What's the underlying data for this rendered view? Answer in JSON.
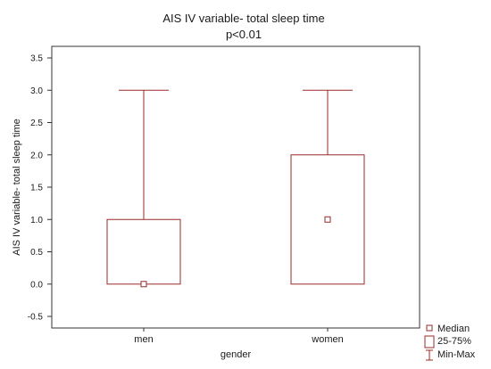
{
  "chart_data": {
    "type": "box",
    "title": "AIS IV variable- total sleep time",
    "subtitle": "p<0.01",
    "xlabel": "gender",
    "ylabel": "AIS IV variable- total sleep time",
    "categories": [
      "men",
      "women"
    ],
    "ylim": [
      -0.5,
      3.5
    ],
    "yticks": [
      "-0.5",
      "0.0",
      "0.5",
      "1.0",
      "1.5",
      "2.0",
      "2.5",
      "3.0",
      "3.5"
    ],
    "series": [
      {
        "category": "men",
        "min": 0.0,
        "q1": 0.0,
        "median": 0.0,
        "q3": 1.0,
        "max": 3.0
      },
      {
        "category": "women",
        "min": 0.0,
        "q1": 0.0,
        "median": 1.0,
        "q3": 2.0,
        "max": 3.0
      }
    ],
    "legend": {
      "position": "bottom-right",
      "entries": [
        "Median",
        "25-75%",
        "Min-Max"
      ]
    },
    "colors": {
      "box": "#9b2a2a"
    },
    "grid": false
  }
}
